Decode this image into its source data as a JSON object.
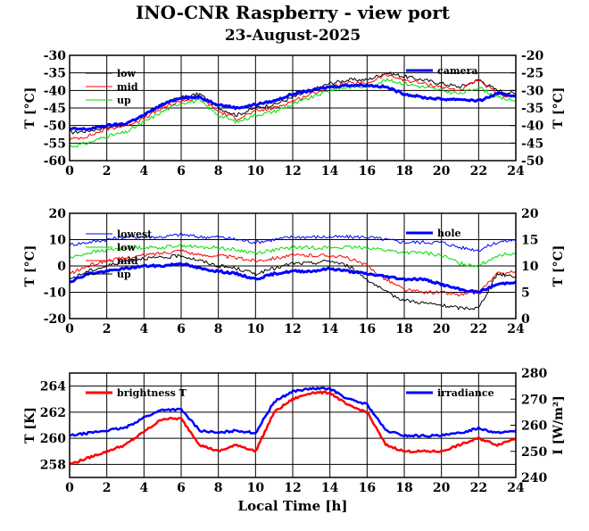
{
  "page": {
    "title": "INO-CNR Raspberry - view port",
    "subtitle": "23-August-2025",
    "xlabel": "Local Time [h]"
  },
  "chart_data": [
    {
      "type": "line",
      "x_ticks": [
        0,
        2,
        4,
        6,
        8,
        10,
        12,
        14,
        16,
        18,
        20,
        22,
        24
      ],
      "xlim": [
        0,
        24
      ],
      "left_axis": {
        "label": "T [°C]",
        "ylim": [
          -60,
          -30
        ],
        "ticks": [
          -60,
          -55,
          -50,
          -45,
          -40,
          -35,
          -30
        ]
      },
      "right_axis": {
        "label": "T [°C]",
        "ylim": [
          -50,
          -20
        ],
        "ticks": [
          -50,
          -45,
          -40,
          -35,
          -30,
          -25,
          -20
        ]
      },
      "grid": true,
      "legend": "top-left and top-right",
      "series": [
        {
          "name": "low",
          "color": "#000000",
          "axis": "left",
          "width": 1,
          "x": [
            0,
            1,
            2,
            3,
            4,
            5,
            6,
            7,
            8,
            9,
            10,
            11,
            12,
            13,
            14,
            15,
            16,
            17,
            18,
            19,
            20,
            21,
            22,
            23,
            24
          ],
          "y": [
            -52,
            -51.5,
            -50.5,
            -49.5,
            -47,
            -44,
            -42,
            -41,
            -45,
            -47,
            -45,
            -44,
            -42,
            -40,
            -38,
            -37,
            -37,
            -35,
            -36,
            -37,
            -38,
            -39,
            -37,
            -40,
            -41
          ]
        },
        {
          "name": "mid",
          "color": "#ff0000",
          "axis": "left",
          "width": 1,
          "x": [
            0,
            1,
            2,
            3,
            4,
            5,
            6,
            7,
            8,
            9,
            10,
            11,
            12,
            13,
            14,
            15,
            16,
            17,
            18,
            19,
            20,
            21,
            22,
            23,
            24
          ],
          "y": [
            -54,
            -53,
            -51,
            -50,
            -48,
            -45,
            -43,
            -42,
            -46,
            -48,
            -46,
            -45,
            -43,
            -41,
            -39,
            -38,
            -38,
            -35.5,
            -37,
            -38,
            -39,
            -40,
            -37,
            -41,
            -42
          ]
        },
        {
          "name": "up",
          "color": "#00dd00",
          "axis": "left",
          "width": 1,
          "x": [
            0,
            1,
            2,
            3,
            4,
            5,
            6,
            7,
            8,
            9,
            10,
            11,
            12,
            13,
            14,
            15,
            16,
            17,
            18,
            19,
            20,
            21,
            22,
            23,
            24
          ],
          "y": [
            -56,
            -55,
            -53,
            -52,
            -49,
            -46,
            -43.5,
            -43,
            -47,
            -49,
            -47,
            -46,
            -44,
            -42,
            -40,
            -39,
            -39,
            -37,
            -38,
            -39,
            -40,
            -41,
            -39,
            -42,
            -43
          ]
        },
        {
          "name": "camera",
          "color": "#0000ff",
          "axis": "right",
          "width": 3,
          "x": [
            0,
            1,
            2,
            3,
            4,
            5,
            6,
            7,
            8,
            9,
            10,
            11,
            12,
            13,
            14,
            15,
            16,
            17,
            18,
            19,
            20,
            21,
            22,
            23,
            24
          ],
          "y": [
            -41,
            -41,
            -40,
            -39.5,
            -37,
            -34,
            -32,
            -32,
            -34,
            -35,
            -34,
            -33,
            -31,
            -30,
            -29,
            -28.5,
            -28.5,
            -29,
            -31,
            -32,
            -32.5,
            -32.5,
            -33,
            -31,
            -31.5
          ]
        }
      ]
    },
    {
      "type": "line",
      "x_ticks": [
        0,
        2,
        4,
        6,
        8,
        10,
        12,
        14,
        16,
        18,
        20,
        22,
        24
      ],
      "xlim": [
        0,
        24
      ],
      "left_axis": {
        "label": "T [°C]",
        "ylim": [
          -20,
          20
        ],
        "ticks": [
          -20,
          -10,
          0,
          10,
          20
        ]
      },
      "right_axis": {
        "label": "T [°C]",
        "ylim": [
          0,
          20
        ],
        "ticks": [
          0,
          5,
          10,
          15,
          20
        ]
      },
      "grid": true,
      "legend": "top-left and top-right",
      "series": [
        {
          "name": "lowest",
          "color": "#0000ff",
          "axis": "left",
          "width": 1,
          "x": [
            0,
            1,
            2,
            3,
            4,
            5,
            6,
            7,
            8,
            9,
            10,
            11,
            12,
            13,
            14,
            15,
            16,
            17,
            18,
            19,
            20,
            21,
            22,
            23,
            24
          ],
          "y": [
            8,
            9,
            10,
            11,
            11,
            11,
            12,
            11,
            11,
            10,
            9,
            10,
            11,
            11,
            11,
            11,
            11,
            10,
            9,
            9,
            9,
            7,
            6,
            9,
            10
          ]
        },
        {
          "name": "low",
          "color": "#00dd00",
          "axis": "left",
          "width": 1,
          "x": [
            0,
            1,
            2,
            3,
            4,
            5,
            6,
            7,
            8,
            9,
            10,
            11,
            12,
            13,
            14,
            15,
            16,
            17,
            18,
            19,
            20,
            21,
            22,
            23,
            24
          ],
          "y": [
            3,
            5,
            6,
            7,
            7,
            7,
            8,
            7,
            7,
            6,
            5,
            6,
            7,
            7,
            7,
            7,
            7,
            6,
            5,
            5,
            4,
            1,
            0,
            4,
            5
          ]
        },
        {
          "name": "mid",
          "color": "#ff0000",
          "axis": "left",
          "width": 1,
          "x": [
            0,
            1,
            2,
            3,
            4,
            5,
            6,
            7,
            8,
            9,
            10,
            11,
            12,
            13,
            14,
            15,
            16,
            17,
            18,
            19,
            20,
            21,
            22,
            23,
            24
          ],
          "y": [
            -3,
            0,
            2,
            3,
            4,
            5,
            6,
            4,
            4,
            3,
            2,
            3,
            4,
            4,
            4,
            3,
            0,
            -5,
            -9,
            -10,
            -10,
            -11,
            -10,
            -3,
            -2
          ]
        },
        {
          "name": "up",
          "color": "#000000",
          "axis": "left",
          "width": 1,
          "x": [
            0,
            1,
            2,
            3,
            4,
            5,
            6,
            7,
            8,
            9,
            10,
            11,
            12,
            13,
            14,
            15,
            16,
            17,
            18,
            19,
            20,
            21,
            22,
            23,
            24
          ],
          "y": [
            -5,
            -2,
            0,
            2,
            3,
            3,
            4,
            2,
            0,
            -1,
            -3,
            -1,
            1,
            1,
            2,
            0,
            -5,
            -10,
            -13,
            -14,
            -15,
            -16,
            -16,
            -3,
            -4
          ]
        },
        {
          "name": "hole",
          "color": "#0000ff",
          "axis": "right",
          "width": 3,
          "x": [
            0,
            1,
            2,
            3,
            4,
            5,
            6,
            7,
            8,
            9,
            10,
            11,
            12,
            13,
            14,
            15,
            16,
            17,
            18,
            19,
            20,
            21,
            22,
            23,
            24
          ],
          "y": [
            7,
            8.5,
            9,
            9.5,
            10,
            10,
            10.5,
            9.5,
            9,
            8.5,
            7.5,
            8.5,
            9,
            9,
            9.5,
            9,
            8.5,
            8,
            7.5,
            7.5,
            6.5,
            5.5,
            5,
            6.5,
            7
          ]
        }
      ]
    },
    {
      "type": "line",
      "x_ticks": [
        0,
        2,
        4,
        6,
        8,
        10,
        12,
        14,
        16,
        18,
        20,
        22,
        24
      ],
      "xlim": [
        0,
        24
      ],
      "left_axis": {
        "label": "T [K]",
        "ylim": [
          257,
          265
        ],
        "ticks": [
          258,
          260,
          262,
          264
        ]
      },
      "right_axis": {
        "label": "I [W/m²]",
        "ylim": [
          240,
          280
        ],
        "ticks": [
          240,
          250,
          260,
          270,
          280
        ]
      },
      "grid": true,
      "legend": "top-left and top-right",
      "series": [
        {
          "name": "brightness T",
          "color": "#ff0000",
          "axis": "left",
          "width": 2.5,
          "x": [
            0,
            1,
            2,
            3,
            4,
            5,
            6,
            7,
            8,
            9,
            10,
            11,
            12,
            13,
            14,
            15,
            16,
            17,
            18,
            19,
            20,
            21,
            22,
            23,
            24
          ],
          "y": [
            258,
            258.5,
            259,
            259.5,
            260.5,
            261.5,
            261.5,
            259.5,
            259,
            259.5,
            259,
            262,
            263,
            263.5,
            263.5,
            262.5,
            262,
            259.5,
            259,
            259,
            259,
            259.5,
            260,
            259.5,
            260
          ]
        },
        {
          "name": "irradiance",
          "color": "#0000ff",
          "axis": "right",
          "width": 2.5,
          "x": [
            0,
            1,
            2,
            3,
            4,
            5,
            6,
            7,
            8,
            9,
            10,
            11,
            12,
            13,
            14,
            15,
            16,
            17,
            18,
            19,
            20,
            21,
            22,
            23,
            24
          ],
          "y": [
            256,
            257,
            258,
            259,
            263,
            266,
            266,
            258,
            257,
            258,
            257,
            269,
            273,
            274,
            274,
            270,
            268,
            258,
            256,
            256,
            256,
            257,
            259,
            257,
            258
          ]
        }
      ]
    }
  ]
}
